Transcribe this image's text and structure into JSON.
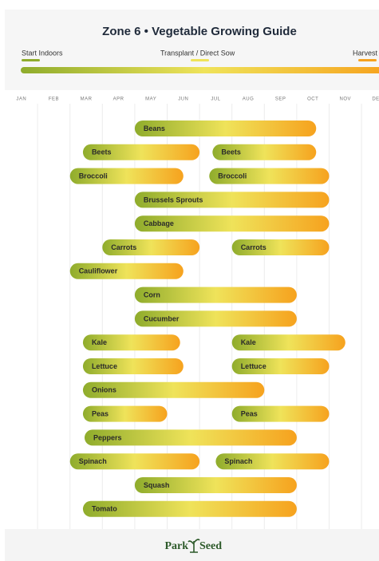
{
  "chart_data": {
    "type": "timeline",
    "title": "Zone 6 • Vegetable Growing Guide",
    "legend": [
      {
        "name": "Start Indoors",
        "color": "#8fac2c"
      },
      {
        "name": "Transplant / Direct Sow",
        "color": "#efe35a"
      },
      {
        "name": "Harvest",
        "color": "#f6a21e"
      }
    ],
    "months": [
      "JAN",
      "FEB",
      "MAR",
      "APR",
      "MAY",
      "JUN",
      "JUL",
      "AUG",
      "SEP",
      "OCT",
      "NOV",
      "DEC"
    ],
    "xlim": [
      0,
      12
    ],
    "rows": [
      {
        "bars": [
          {
            "label": "Beans",
            "start": 4.0,
            "end": 9.6
          }
        ]
      },
      {
        "bars": [
          {
            "label": "Beets",
            "start": 2.4,
            "end": 6.0
          },
          {
            "label": "Beets",
            "start": 6.4,
            "end": 9.6
          }
        ]
      },
      {
        "bars": [
          {
            "label": "Broccoli",
            "start": 2.0,
            "end": 5.5
          },
          {
            "label": "Broccoli",
            "start": 6.3,
            "end": 10.0
          }
        ]
      },
      {
        "bars": [
          {
            "label": "Brussels Sprouts",
            "start": 4.0,
            "end": 10.0
          }
        ]
      },
      {
        "bars": [
          {
            "label": "Cabbage",
            "start": 4.0,
            "end": 10.0
          }
        ]
      },
      {
        "bars": [
          {
            "label": "Carrots",
            "start": 3.0,
            "end": 6.0
          },
          {
            "label": "Carrots",
            "start": 7.0,
            "end": 10.0
          }
        ]
      },
      {
        "bars": [
          {
            "label": "Cauliflower",
            "start": 2.0,
            "end": 5.5
          }
        ]
      },
      {
        "bars": [
          {
            "label": "Corn",
            "start": 4.0,
            "end": 9.0
          }
        ]
      },
      {
        "bars": [
          {
            "label": "Cucumber",
            "start": 4.0,
            "end": 9.0
          }
        ]
      },
      {
        "bars": [
          {
            "label": "Kale",
            "start": 2.4,
            "end": 5.4
          },
          {
            "label": "Kale",
            "start": 7.0,
            "end": 10.5
          }
        ]
      },
      {
        "bars": [
          {
            "label": "Lettuce",
            "start": 2.4,
            "end": 5.5
          },
          {
            "label": "Lettuce",
            "start": 7.0,
            "end": 10.0
          }
        ]
      },
      {
        "bars": [
          {
            "label": "Onions",
            "start": 2.4,
            "end": 8.0
          }
        ]
      },
      {
        "bars": [
          {
            "label": "Peas",
            "start": 2.4,
            "end": 5.0
          },
          {
            "label": "Peas",
            "start": 7.0,
            "end": 10.0
          }
        ]
      },
      {
        "bars": [
          {
            "label": "Peppers",
            "start": 2.45,
            "end": 9.0
          }
        ]
      },
      {
        "bars": [
          {
            "label": "Spinach",
            "start": 2.0,
            "end": 6.0
          },
          {
            "label": "Spinach",
            "start": 6.5,
            "end": 10.0
          }
        ]
      },
      {
        "bars": [
          {
            "label": "Squash",
            "start": 4.0,
            "end": 9.0
          }
        ]
      },
      {
        "bars": [
          {
            "label": "Tomato",
            "start": 2.4,
            "end": 9.0
          }
        ]
      }
    ],
    "footer": {
      "brand_left": "Park",
      "brand_right": "Seed"
    }
  }
}
